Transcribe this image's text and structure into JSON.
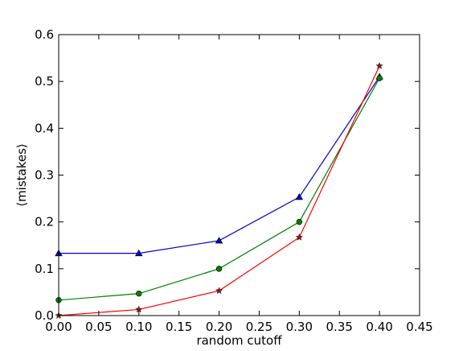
{
  "chart_data": {
    "type": "line",
    "title": "",
    "xlabel": "random cutoff",
    "ylabel": "⟨mistakes⟩",
    "xlim": [
      0.0,
      0.45
    ],
    "ylim": [
      0.0,
      0.6
    ],
    "xticks": [
      "0.00",
      "0.05",
      "0.10",
      "0.15",
      "0.20",
      "0.25",
      "0.30",
      "0.35",
      "0.40",
      "0.45"
    ],
    "yticks": [
      "0.0",
      "0.1",
      "0.2",
      "0.3",
      "0.4",
      "0.5",
      "0.6"
    ],
    "grid": false,
    "series": [
      {
        "color": "#0000cc",
        "marker": "triangle",
        "x": [
          0.0,
          0.1,
          0.2,
          0.3,
          0.4
        ],
        "y": [
          0.133,
          0.133,
          0.16,
          0.253,
          0.51
        ]
      },
      {
        "color": "#008000",
        "marker": "circle",
        "x": [
          0.0,
          0.1,
          0.2,
          0.3,
          0.4
        ],
        "y": [
          0.033,
          0.047,
          0.1,
          0.2,
          0.507
        ]
      },
      {
        "color": "#ff0000",
        "marker": "star",
        "x": [
          0.0,
          0.1,
          0.2,
          0.3,
          0.4
        ],
        "y": [
          0.0,
          0.013,
          0.053,
          0.167,
          0.533
        ]
      }
    ]
  }
}
